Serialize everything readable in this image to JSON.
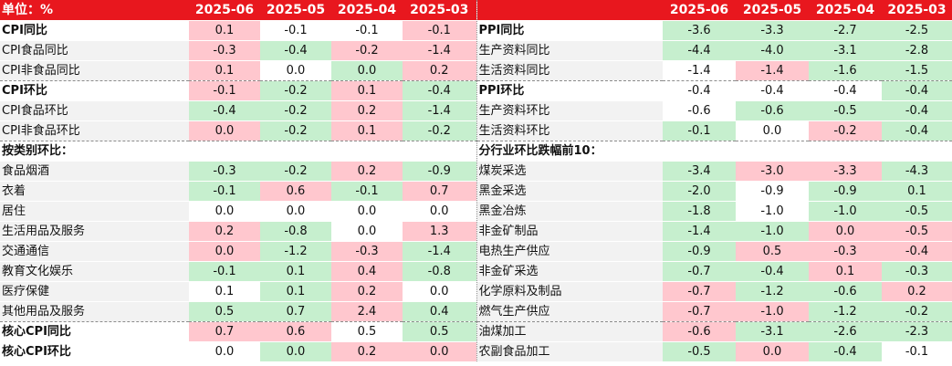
{
  "header": {
    "unit_label": "单位：%",
    "months": [
      "2025-06",
      "2025-05",
      "2025-04",
      "2025-03"
    ]
  },
  "rows": [
    {
      "left": {
        "label": "CPI同比",
        "vals": [
          "0.1",
          "-0.1",
          "-0.1",
          "-0.1"
        ]
      },
      "right": {
        "label": "PPI同比",
        "vals": [
          "-3.6",
          "-3.3",
          "-2.7",
          "-2.5"
        ]
      }
    },
    {
      "left": {
        "label": "CPI食品同比",
        "vals": [
          "-0.3",
          "-0.4",
          "-0.2",
          "-1.4"
        ]
      },
      "right": {
        "label": "生产资料同比",
        "vals": [
          "-4.4",
          "-4.0",
          "-3.1",
          "-2.8"
        ]
      }
    },
    {
      "left": {
        "label": "CPI非食品同比",
        "vals": [
          "0.1",
          "0.0",
          "0.0",
          "0.2"
        ]
      },
      "right": {
        "label": "生活资料同比",
        "vals": [
          "-1.4",
          "-1.4",
          "-1.6",
          "-1.5"
        ]
      }
    },
    {
      "left": {
        "label": "CPI环比",
        "vals": [
          "-0.1",
          "-0.2",
          "0.1",
          "-0.4"
        ]
      },
      "right": {
        "label": "PPI环比",
        "vals": [
          "-0.4",
          "-0.4",
          "-0.4",
          "-0.4"
        ]
      }
    },
    {
      "left": {
        "label": "CPI食品环比",
        "vals": [
          "-0.4",
          "-0.2",
          "0.2",
          "-1.4"
        ]
      },
      "right": {
        "label": "生产资料环比",
        "vals": [
          "-0.6",
          "-0.6",
          "-0.5",
          "-0.4"
        ]
      }
    },
    {
      "left": {
        "label": "CPI非食品环比",
        "vals": [
          "0.0",
          "-0.2",
          "0.1",
          "-0.2"
        ]
      },
      "right": {
        "label": "生活资料环比",
        "vals": [
          "-0.1",
          "0.0",
          "-0.2",
          "-0.4"
        ]
      }
    },
    {
      "left": {
        "label": "按类别环比：",
        "vals": [
          "",
          "",
          "",
          ""
        ]
      },
      "right": {
        "label": "分行业环比跌幅前10：",
        "vals": [
          "",
          "",
          "",
          ""
        ]
      }
    },
    {
      "left": {
        "label": "食品烟酒",
        "vals": [
          "-0.3",
          "-0.2",
          "0.2",
          "-0.9"
        ]
      },
      "right": {
        "label": "煤炭采选",
        "vals": [
          "-3.4",
          "-3.0",
          "-3.3",
          "-4.3"
        ]
      }
    },
    {
      "left": {
        "label": "衣着",
        "vals": [
          "-0.1",
          "0.6",
          "-0.1",
          "0.7"
        ]
      },
      "right": {
        "label": "黑金采选",
        "vals": [
          "-2.0",
          "-0.9",
          "-0.9",
          "0.1"
        ]
      }
    },
    {
      "left": {
        "label": "居住",
        "vals": [
          "0.0",
          "0.0",
          "0.0",
          "0.0"
        ]
      },
      "right": {
        "label": "黑金冶炼",
        "vals": [
          "-1.8",
          "-1.0",
          "-1.0",
          "-0.5"
        ]
      }
    },
    {
      "left": {
        "label": "生活用品及服务",
        "vals": [
          "0.2",
          "-0.8",
          "0.0",
          "1.3"
        ]
      },
      "right": {
        "label": "非金矿制品",
        "vals": [
          "-1.4",
          "-1.0",
          "0.0",
          "-0.5"
        ]
      }
    },
    {
      "left": {
        "label": "交通通信",
        "vals": [
          "0.0",
          "-1.2",
          "-0.3",
          "-1.4"
        ]
      },
      "right": {
        "label": "电热生产供应",
        "vals": [
          "-0.9",
          "0.5",
          "-0.3",
          "-0.4"
        ]
      }
    },
    {
      "left": {
        "label": "教育文化娱乐",
        "vals": [
          "-0.1",
          "0.1",
          "0.4",
          "-0.8"
        ]
      },
      "right": {
        "label": "非金矿采选",
        "vals": [
          "-0.7",
          "-0.4",
          "0.1",
          "-0.3"
        ]
      }
    },
    {
      "left": {
        "label": "医疗保健",
        "vals": [
          "0.1",
          "0.1",
          "0.2",
          "0.0"
        ]
      },
      "right": {
        "label": "化学原料及制品",
        "vals": [
          "-0.7",
          "-1.2",
          "-0.6",
          "0.2"
        ]
      }
    },
    {
      "left": {
        "label": "其他用品及服务",
        "vals": [
          "0.5",
          "0.7",
          "2.4",
          "0.4"
        ]
      },
      "right": {
        "label": "燃气生产供应",
        "vals": [
          "-0.7",
          "-1.0",
          "-1.2",
          "-0.2"
        ]
      }
    },
    {
      "left": {
        "label": "核心CPI同比",
        "vals": [
          "0.7",
          "0.6",
          "0.5",
          "0.5"
        ]
      },
      "right": {
        "label": "油煤加工",
        "vals": [
          "-0.6",
          "-3.1",
          "-2.6",
          "-2.3"
        ]
      }
    },
    {
      "left": {
        "label": "核心CPI环比",
        "vals": [
          "0.0",
          "0.0",
          "0.2",
          "0.0"
        ]
      },
      "right": {
        "label": "农副食品加工",
        "vals": [
          "-0.5",
          "0.0",
          "-0.4",
          "-0.1"
        ]
      }
    }
  ],
  "cell_colors": {
    "left": [
      [
        "pos",
        "zero",
        "zero",
        "pos"
      ],
      [
        "pos",
        "neg",
        "pos",
        "pos"
      ],
      [
        "pos",
        "zero",
        "neg",
        "pos"
      ],
      [
        "pos",
        "neg",
        "pos",
        "neg"
      ],
      [
        "neg",
        "neg",
        "pos",
        "neg"
      ],
      [
        "pos",
        "neg",
        "pos",
        "neg"
      ],
      [
        "zero",
        "zero",
        "zero",
        "zero"
      ],
      [
        "neg",
        "neg",
        "pos",
        "neg"
      ],
      [
        "neg",
        "pos",
        "neg",
        "pos"
      ],
      [
        "zero",
        "zero",
        "zero",
        "zero"
      ],
      [
        "pos",
        "neg",
        "zero",
        "pos"
      ],
      [
        "pos",
        "neg",
        "pos",
        "neg"
      ],
      [
        "neg",
        "neg",
        "pos",
        "neg"
      ],
      [
        "zero",
        "neg",
        "pos",
        "zero"
      ],
      [
        "neg",
        "neg",
        "pos",
        "neg"
      ],
      [
        "pos",
        "pos",
        "zero",
        "neg"
      ],
      [
        "zero",
        "neg",
        "pos",
        "pos"
      ]
    ],
    "right": [
      [
        "neg",
        "neg",
        "neg",
        "neg"
      ],
      [
        "neg",
        "neg",
        "neg",
        "neg"
      ],
      [
        "zero",
        "pos",
        "neg",
        "neg"
      ],
      [
        "zero",
        "zero",
        "zero",
        "neg"
      ],
      [
        "zero",
        "neg",
        "neg",
        "neg"
      ],
      [
        "neg",
        "zero",
        "pos",
        "neg"
      ],
      [
        "zero",
        "zero",
        "zero",
        "zero"
      ],
      [
        "neg",
        "pos",
        "pos",
        "neg"
      ],
      [
        "neg",
        "zero",
        "neg",
        "neg"
      ],
      [
        "neg",
        "zero",
        "neg",
        "neg"
      ],
      [
        "neg",
        "neg",
        "pos",
        "pos"
      ],
      [
        "neg",
        "pos",
        "pos",
        "pos"
      ],
      [
        "neg",
        "neg",
        "pos",
        "neg"
      ],
      [
        "pos",
        "neg",
        "neg",
        "pos"
      ],
      [
        "pos",
        "pos",
        "neg",
        "neg"
      ],
      [
        "pos",
        "neg",
        "neg",
        "neg"
      ],
      [
        "neg",
        "pos",
        "neg",
        "zero"
      ]
    ]
  },
  "colors": {
    "header_red": "#e8171e",
    "positive_fill": "#ffc7ce",
    "negative_fill": "#c6efce",
    "label_gray": "#f2f2f2"
  }
}
